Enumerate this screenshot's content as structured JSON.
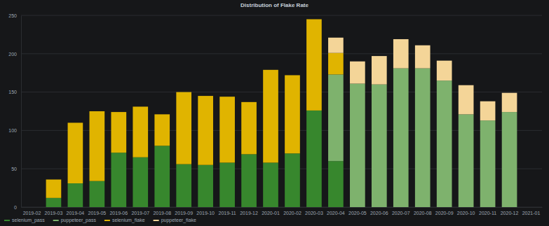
{
  "chart_data": {
    "type": "bar",
    "title": "Distribution of Flake Rate",
    "categories": [
      "2019-02",
      "2019-03",
      "2019-04",
      "2019-05",
      "2019-06",
      "2019-07",
      "2019-08",
      "2019-09",
      "2019-10",
      "2019-11",
      "2019-12",
      "2020-01",
      "2020-02",
      "2020-03",
      "2020-04",
      "2020-05",
      "2020-06",
      "2020-07",
      "2020-08",
      "2020-09",
      "2020-10",
      "2020-11",
      "2020-12",
      "2021-01"
    ],
    "series": [
      {
        "name": "selenium_pass",
        "color": "#37872d",
        "values": [
          null,
          12,
          31,
          34,
          71,
          65,
          80,
          56,
          55,
          58,
          69,
          58,
          70,
          126,
          60,
          null,
          null,
          null,
          null,
          null,
          null,
          null,
          null,
          null
        ]
      },
      {
        "name": "puppeteer_pass",
        "color": "#7eb26d",
        "values": [
          null,
          null,
          null,
          null,
          null,
          null,
          null,
          null,
          null,
          null,
          null,
          null,
          null,
          null,
          113,
          161,
          160,
          181,
          181,
          165,
          121,
          113,
          124,
          null
        ]
      },
      {
        "name": "selenium_flake",
        "color": "#e0b400",
        "values": [
          null,
          24,
          79,
          91,
          53,
          66,
          41,
          94,
          90,
          86,
          68,
          121,
          102,
          119,
          28,
          null,
          null,
          null,
          null,
          null,
          null,
          null,
          null,
          null
        ]
      },
      {
        "name": "puppeteer_flake",
        "color": "#f4d598",
        "values": [
          null,
          null,
          null,
          null,
          null,
          null,
          null,
          null,
          null,
          null,
          null,
          null,
          null,
          null,
          20,
          29,
          37,
          38,
          30,
          26,
          38,
          25,
          25,
          null
        ]
      }
    ],
    "stacked": true,
    "ylim": [
      0,
      250
    ],
    "yticks": [
      0,
      50,
      100,
      150,
      200,
      250
    ],
    "grid": true,
    "legend": "bottom"
  }
}
